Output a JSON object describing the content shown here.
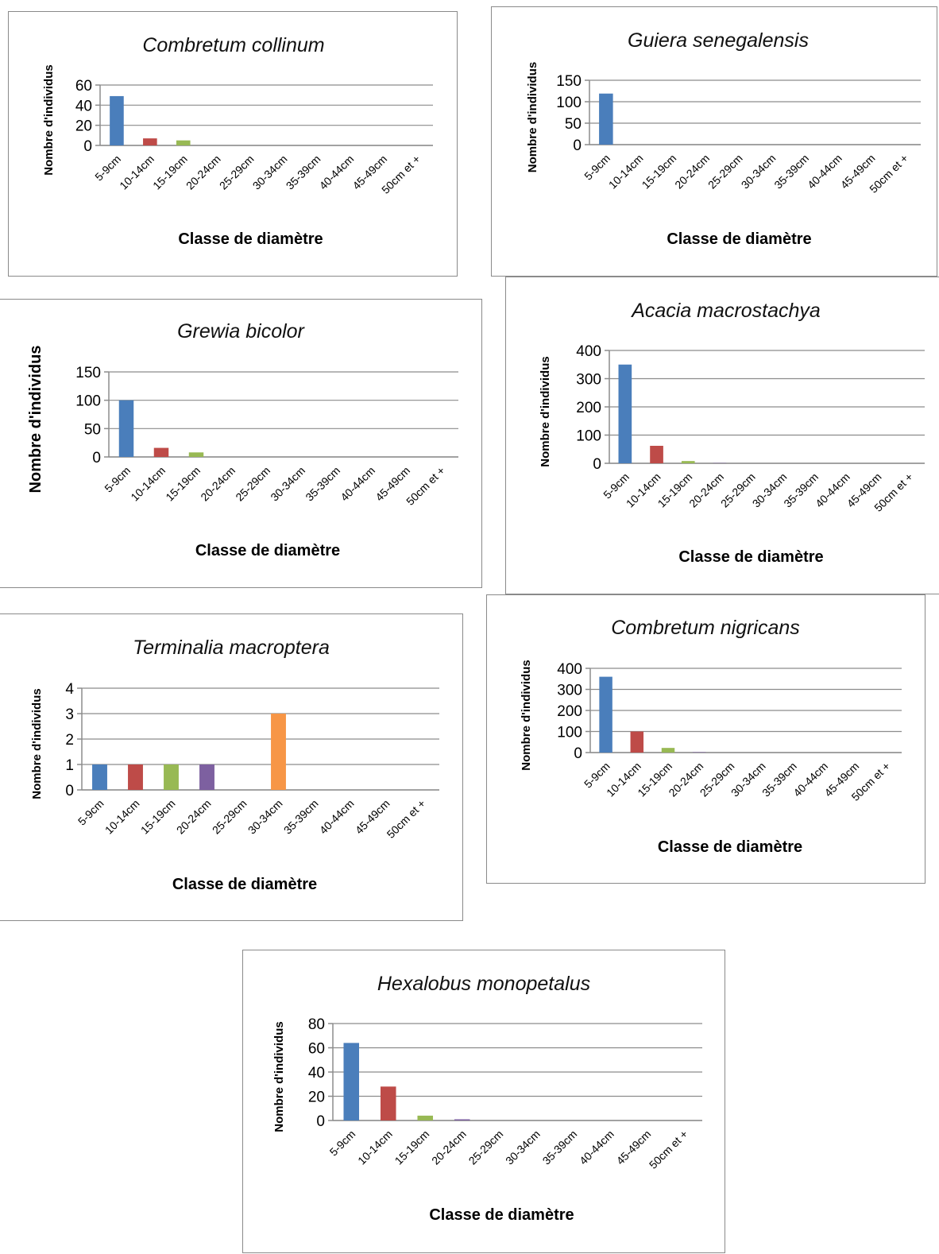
{
  "palette": {
    "blue": "#4a7ebb",
    "red": "#be4b48",
    "green": "#98b954",
    "purple": "#7d60a0",
    "orange": "#f79646"
  },
  "chart_data": [
    {
      "type": "bar",
      "title": "Combretum collinum",
      "xlabel": "Classe de diamètre",
      "ylabel": "Nombre d'individus",
      "categories": [
        "5-9cm",
        "10-14cm",
        "15-19cm",
        "20-24cm",
        "25-29cm",
        "30-34cm",
        "35-39cm",
        "40-44cm",
        "45-49cm",
        "50cm et +"
      ],
      "values": [
        49,
        7,
        5,
        0,
        0,
        0,
        0,
        0,
        0,
        0
      ],
      "ylim": [
        0,
        60
      ],
      "yticks": [
        0,
        20,
        40,
        60
      ],
      "grid": true
    },
    {
      "type": "bar",
      "title": "Guiera senegalensis",
      "xlabel": "Classe de diamètre",
      "ylabel": "Nombre d'individus",
      "categories": [
        "5-9cm",
        "10-14cm",
        "15-19cm",
        "20-24cm",
        "25-29cm",
        "30-34cm",
        "35-39cm",
        "40-44cm",
        "45-49cm",
        "50cm et +"
      ],
      "values": [
        119,
        0,
        0,
        0,
        0,
        0,
        0,
        0,
        0,
        0
      ],
      "ylim": [
        0,
        150
      ],
      "yticks": [
        0,
        50,
        100,
        150
      ],
      "grid": true
    },
    {
      "type": "bar",
      "title": "Grewia bicolor",
      "xlabel": "Classe de diamètre",
      "ylabel": "Nombre d'individus",
      "categories": [
        "5-9cm",
        "10-14cm",
        "15-19cm",
        "20-24cm",
        "25-29cm",
        "30-34cm",
        "35-39cm",
        "40-44cm",
        "45-49cm",
        "50cm et +"
      ],
      "values": [
        100,
        16,
        8,
        0,
        0,
        0,
        0,
        0,
        0,
        0
      ],
      "ylim": [
        0,
        150
      ],
      "yticks": [
        0,
        50,
        100,
        150
      ],
      "grid": true
    },
    {
      "type": "bar",
      "title": "Acacia macrostachya",
      "xlabel": "Classe de diamètre",
      "ylabel": "Nombre d'individus",
      "categories": [
        "5-9cm",
        "10-14cm",
        "15-19cm",
        "20-24cm",
        "25-29cm",
        "30-34cm",
        "35-39cm",
        "40-44cm",
        "45-49cm",
        "50cm et +"
      ],
      "values": [
        350,
        62,
        8,
        1,
        0,
        0,
        0,
        0,
        0,
        0
      ],
      "ylim": [
        0,
        400
      ],
      "yticks": [
        0,
        100,
        200,
        300,
        400
      ],
      "grid": true
    },
    {
      "type": "bar",
      "title": "Terminalia macroptera",
      "xlabel": "Classe de diamètre",
      "ylabel": "Nombre d'individus",
      "categories": [
        "5-9cm",
        "10-14cm",
        "15-19cm",
        "20-24cm",
        "25-29cm",
        "30-34cm",
        "35-39cm",
        "40-44cm",
        "45-49cm",
        "50cm et +"
      ],
      "values": [
        1,
        1,
        1,
        1,
        0,
        3,
        0,
        0,
        0,
        0
      ],
      "ylim": [
        0,
        4
      ],
      "yticks": [
        0,
        1,
        2,
        3,
        4
      ],
      "grid": true
    },
    {
      "type": "bar",
      "title": "Combretum nigricans",
      "xlabel": "Classe de diamètre",
      "ylabel": "Nombre d'individus",
      "categories": [
        "5-9cm",
        "10-14cm",
        "15-19cm",
        "20-24cm",
        "25-29cm",
        "30-34cm",
        "35-39cm",
        "40-44cm",
        "45-49cm",
        "50cm et +"
      ],
      "values": [
        360,
        100,
        22,
        2,
        0,
        0,
        0,
        0,
        0,
        0
      ],
      "ylim": [
        0,
        400
      ],
      "yticks": [
        0,
        100,
        200,
        300,
        400
      ],
      "grid": true
    },
    {
      "type": "bar",
      "title": "Hexalobus monopetalus",
      "xlabel": "Classe de diamètre",
      "ylabel": "Nombre d'individus",
      "categories": [
        "5-9cm",
        "10-14cm",
        "15-19cm",
        "20-24cm",
        "25-29cm",
        "30-34cm",
        "35-39cm",
        "40-44cm",
        "45-49cm",
        "50cm et +"
      ],
      "values": [
        64,
        28,
        4,
        1,
        0,
        0,
        0,
        0,
        0,
        0
      ],
      "ylim": [
        0,
        80
      ],
      "yticks": [
        0,
        20,
        40,
        60,
        80
      ],
      "grid": true
    }
  ]
}
